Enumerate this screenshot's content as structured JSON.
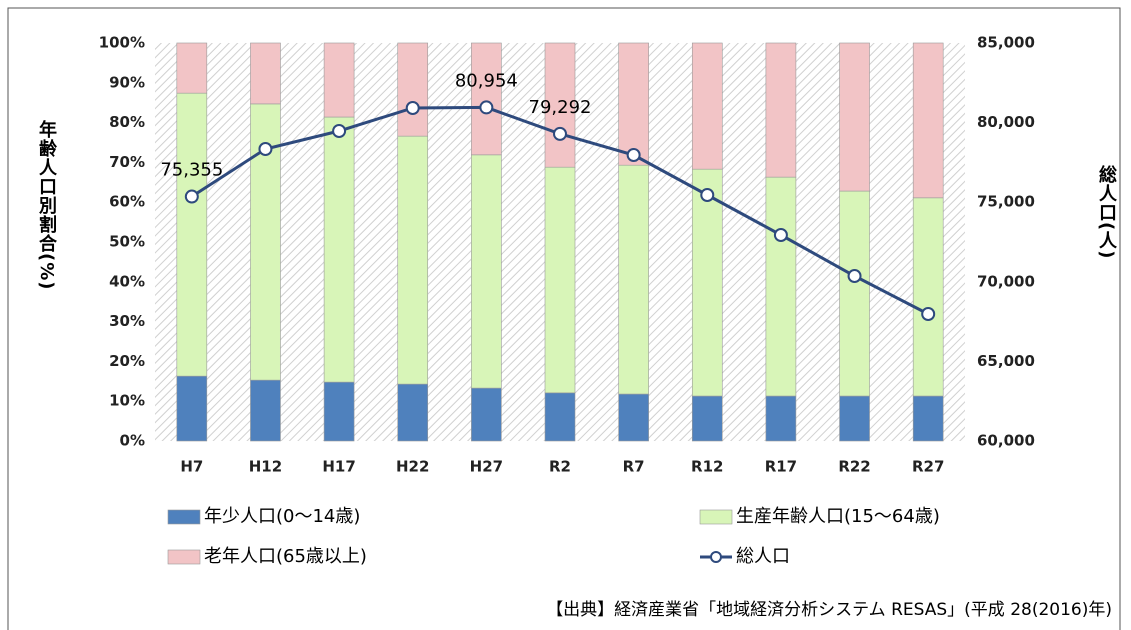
{
  "chart_data": {
    "type": "bar",
    "stacked": true,
    "categories": [
      "H7",
      "H12",
      "H17",
      "H22",
      "H27",
      "R2",
      "R7",
      "R12",
      "R17",
      "R22",
      "R27"
    ],
    "ylabel": "年齢人口別割合(%)",
    "y2label": "総人口(人)",
    "source": "【出典】経済産業省「地域経済分析システム RESAS」(平成 28(2016)年)",
    "ylim": [
      0,
      100
    ],
    "yticks": [
      {
        "value": 0,
        "label": "0%"
      },
      {
        "value": 10,
        "label": "10%"
      },
      {
        "value": 20,
        "label": "20%"
      },
      {
        "value": 30,
        "label": "30%"
      },
      {
        "value": 40,
        "label": "40%"
      },
      {
        "value": 50,
        "label": "50%"
      },
      {
        "value": 60,
        "label": "60%"
      },
      {
        "value": 70,
        "label": "70%"
      },
      {
        "value": 80,
        "label": "80%"
      },
      {
        "value": 90,
        "label": "90%"
      },
      {
        "value": 100,
        "label": "100%"
      }
    ],
    "y2lim": [
      60000,
      85000
    ],
    "y2ticks": [
      {
        "value": 60000,
        "label": "60,000"
      },
      {
        "value": 65000,
        "label": "65,000"
      },
      {
        "value": 70000,
        "label": "70,000"
      },
      {
        "value": 75000,
        "label": "75,000"
      },
      {
        "value": 80000,
        "label": "80,000"
      },
      {
        "value": 85000,
        "label": "85,000"
      }
    ],
    "series": [
      {
        "name": "年少人口(0～14歳)",
        "color": "#4f81bd",
        "values": [
          16.3,
          15.3,
          14.8,
          14.3,
          13.3,
          12.1,
          11.8,
          11.3,
          11.3,
          11.3,
          11.3
        ]
      },
      {
        "name": "生産年齢人口(15～64歳)",
        "color": "#d8f5b8",
        "values": [
          71.1,
          69.4,
          66.6,
          62.3,
          58.6,
          56.7,
          57.5,
          57.0,
          55.0,
          51.5,
          49.8
        ]
      },
      {
        "name": "老年人口(65歳以上)",
        "color": "#f2c4c6",
        "values": [
          12.6,
          15.3,
          18.6,
          23.4,
          28.1,
          31.2,
          30.7,
          31.7,
          33.7,
          37.2,
          38.9
        ]
      },
      {
        "name": "総人口",
        "color": "#2e4a7d",
        "axis": "y2",
        "type": "line",
        "values": [
          75355,
          78342,
          79472,
          80917,
          80954,
          79292,
          77965,
          75452,
          72940,
          70364,
          67977
        ],
        "value_labels": [
          "75,355",
          null,
          null,
          null,
          "80,954",
          "79,292",
          null,
          null,
          null,
          null,
          null
        ]
      }
    ]
  }
}
